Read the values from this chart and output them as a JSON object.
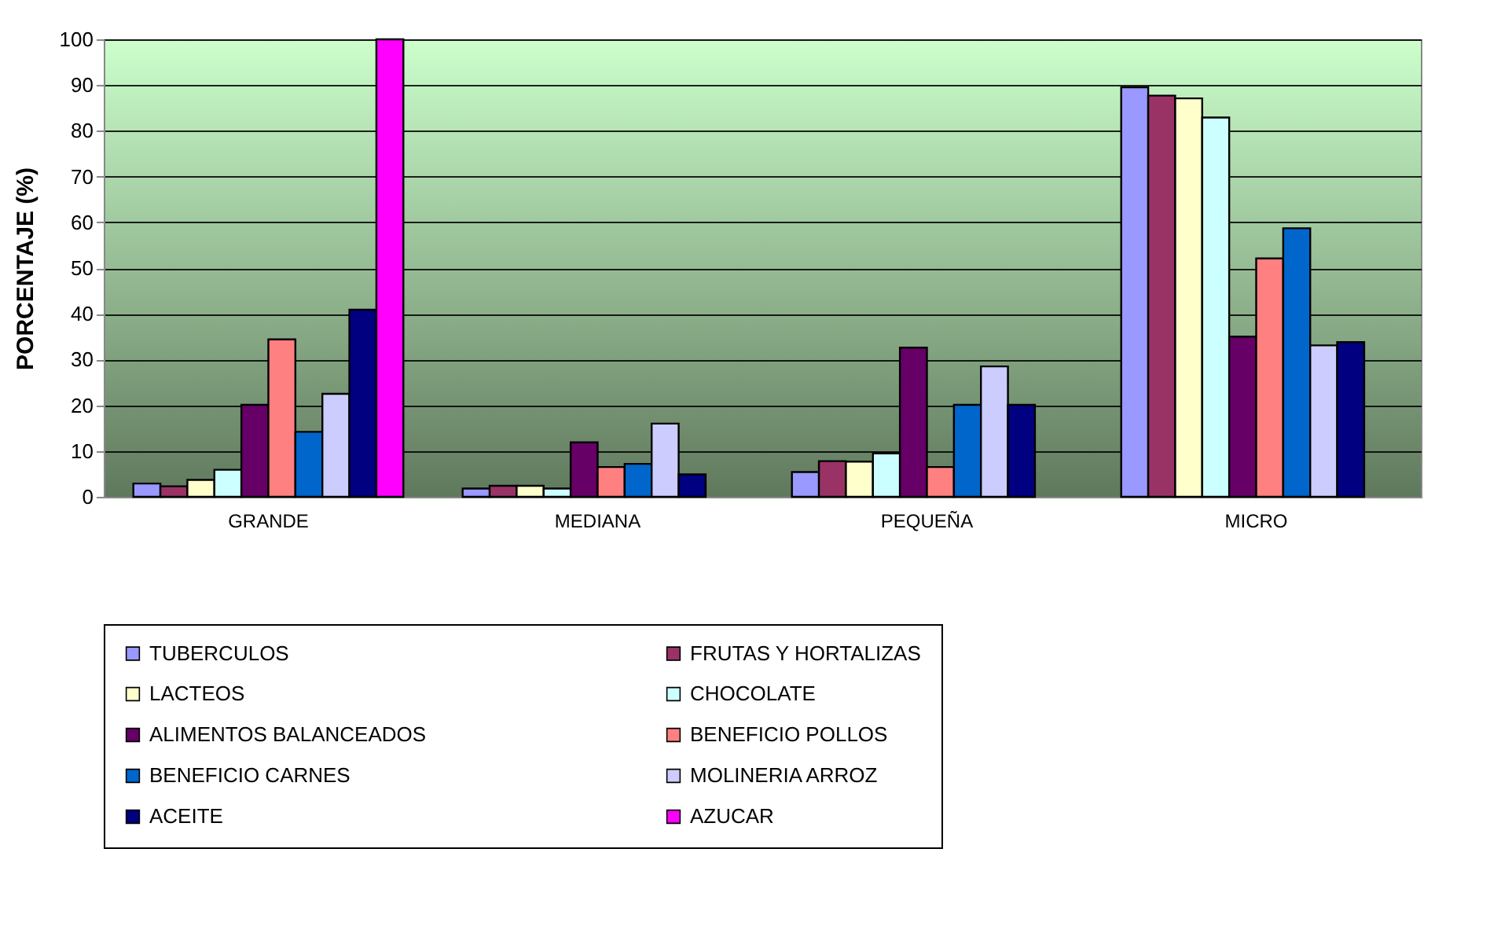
{
  "chart_data": {
    "type": "bar",
    "ylabel": "PORCENTAJE (%)",
    "categories": [
      "GRANDE",
      "MEDIANA",
      "PEQUEÑA",
      "MICRO"
    ],
    "series": [
      {
        "name": "TUBERCULOS",
        "color": "#9999ff",
        "values": [
          2.9,
          1.8,
          5.4,
          89.5
        ]
      },
      {
        "name": "FRUTAS Y HORTALIZAS",
        "color": "#993366",
        "values": [
          2.3,
          2.4,
          7.8,
          87.7
        ]
      },
      {
        "name": "LACTEOS",
        "color": "#ffffcc",
        "values": [
          3.7,
          2.4,
          7.7,
          87.1
        ]
      },
      {
        "name": "CHOCOLATE",
        "color": "#ccffff",
        "values": [
          5.9,
          1.8,
          9.5,
          82.9
        ]
      },
      {
        "name": "ALIMENTOS BALANCEADOS",
        "color": "#660066",
        "values": [
          20.1,
          11.9,
          32.6,
          35
        ]
      },
      {
        "name": "BENEFICIO POLLOS",
        "color": "#ff8080",
        "values": [
          34.4,
          6.5,
          6.5,
          52.1
        ]
      },
      {
        "name": "BENEFICIO CARNES",
        "color": "#0066cc",
        "values": [
          14.2,
          7.2,
          20.1,
          58.7
        ]
      },
      {
        "name": "MOLINERIA ARROZ",
        "color": "#ccccff",
        "values": [
          22.5,
          16,
          28.5,
          33.1
        ]
      },
      {
        "name": "ACEITE",
        "color": "#000080",
        "values": [
          40.9,
          4.9,
          20.1,
          33.8
        ]
      },
      {
        "name": "AZUCAR",
        "color": "#ff00ff",
        "values": [
          100,
          null,
          null,
          null
        ]
      }
    ],
    "ylim": [
      0,
      100
    ],
    "yticks": [
      0,
      10,
      20,
      30,
      40,
      50,
      60,
      70,
      80,
      90,
      100
    ],
    "grid": "y",
    "legend": "bottom"
  }
}
